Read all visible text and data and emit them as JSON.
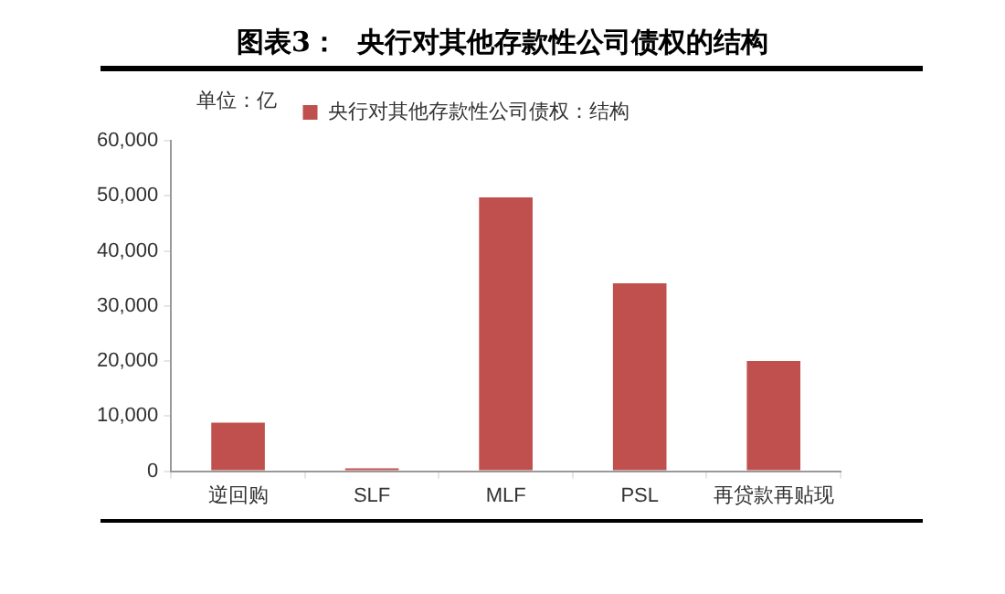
{
  "chart_data": {
    "type": "bar",
    "title": "图表3：  央行对其他存款性公司债权的结构",
    "categories": [
      "逆回购",
      "SLF",
      "MLF",
      "PSL",
      "再贷款再贴现"
    ],
    "series": [
      {
        "name": "央行对其他存款性公司债权：结构",
        "color": "#c0504d",
        "values": [
          8800,
          500,
          49700,
          34100,
          20000
        ]
      }
    ],
    "ylim": [
      0,
      60000
    ],
    "yticks": [
      {
        "value": 0,
        "label": "0"
      },
      {
        "value": 10000,
        "label": "10,000"
      },
      {
        "value": 20000,
        "label": "20,000"
      },
      {
        "value": 30000,
        "label": "30,000"
      },
      {
        "value": 40000,
        "label": "40,000"
      },
      {
        "value": 50000,
        "label": "50,000"
      },
      {
        "value": 60000,
        "label": "60,000"
      }
    ],
    "grid": false,
    "legend": "top",
    "annotations": [
      "单位：亿"
    ]
  }
}
